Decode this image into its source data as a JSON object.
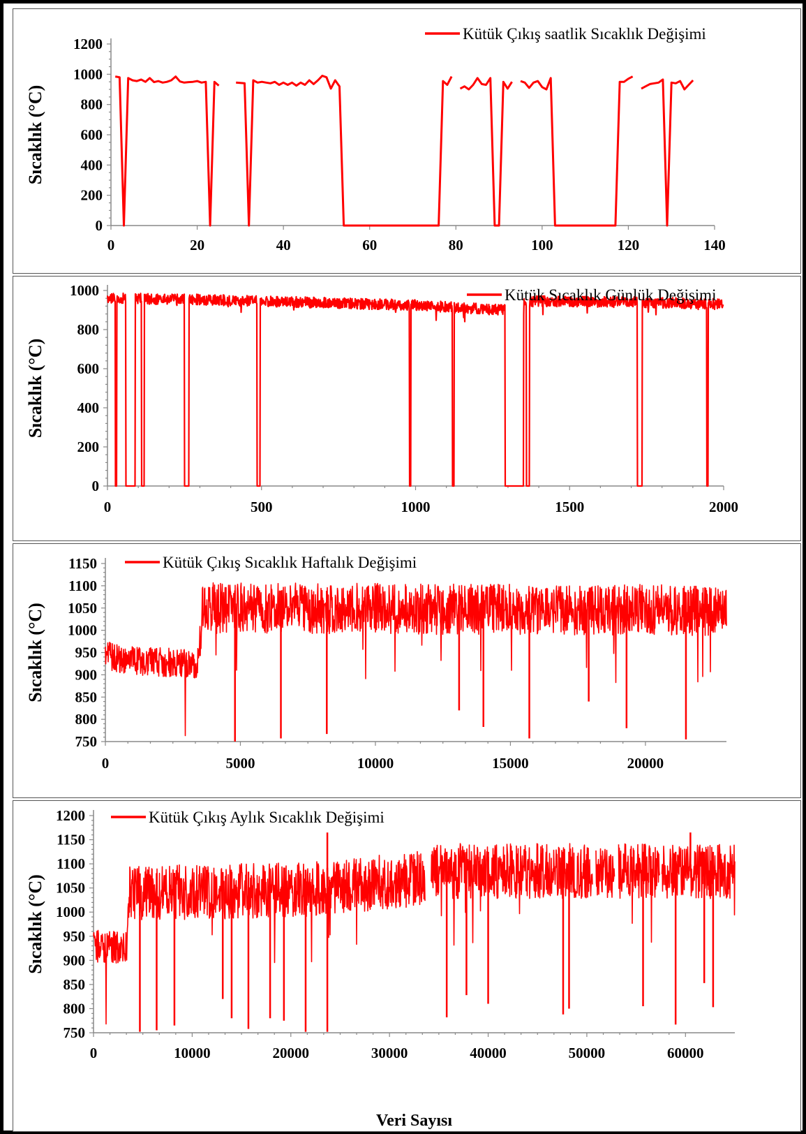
{
  "colors": {
    "series": "#ff0000",
    "axis": "#888888",
    "text": "#000000"
  },
  "chart_data": [
    {
      "type": "line",
      "ylabel": "Sıcaklık (°C)",
      "xlabel": "",
      "xlim": [
        0,
        140
      ],
      "ylim": [
        0,
        1200
      ],
      "xticks": [
        0,
        20,
        40,
        60,
        80,
        100,
        120,
        140
      ],
      "yticks": [
        0,
        200,
        400,
        600,
        800,
        1000,
        1200
      ],
      "legend": "top-right",
      "grid": false,
      "series": [
        {
          "name": "Kütük Çıkış saatlik Sıcaklık Değişimi",
          "segments": [
            [
              [
                1,
                985
              ],
              [
                2,
                980
              ],
              [
                3,
                0
              ],
              [
                4,
                975
              ],
              [
                5,
                960
              ],
              [
                6,
                955
              ],
              [
                7,
                965
              ],
              [
                8,
                950
              ],
              [
                9,
                975
              ],
              [
                10,
                948
              ],
              [
                11,
                955
              ],
              [
                12,
                945
              ],
              [
                13,
                950
              ],
              [
                14,
                960
              ],
              [
                15,
                985
              ],
              [
                16,
                952
              ],
              [
                17,
                945
              ],
              [
                18,
                948
              ],
              [
                19,
                950
              ],
              [
                20,
                955
              ],
              [
                21,
                945
              ],
              [
                22,
                950
              ],
              [
                23,
                0
              ],
              [
                24,
                950
              ],
              [
                25,
                925
              ]
            ],
            [
              [
                29,
                945
              ],
              [
                31,
                940
              ],
              [
                32,
                0
              ],
              [
                33,
                960
              ],
              [
                34,
                945
              ],
              [
                35,
                950
              ],
              [
                36,
                945
              ],
              [
                37,
                940
              ],
              [
                38,
                950
              ],
              [
                39,
                930
              ],
              [
                40,
                945
              ],
              [
                41,
                930
              ],
              [
                42,
                945
              ],
              [
                43,
                925
              ],
              [
                44,
                945
              ],
              [
                45,
                930
              ],
              [
                46,
                960
              ],
              [
                47,
                935
              ],
              [
                48,
                960
              ],
              [
                49,
                990
              ],
              [
                50,
                980
              ],
              [
                51,
                905
              ],
              [
                52,
                960
              ],
              [
                53,
                920
              ],
              [
                54,
                0
              ],
              [
                60,
                0
              ],
              [
                70,
                0
              ],
              [
                76,
                0
              ],
              [
                77,
                955
              ],
              [
                78,
                930
              ],
              [
                79,
                985
              ]
            ],
            [
              [
                81,
                905
              ],
              [
                82,
                920
              ],
              [
                83,
                900
              ],
              [
                84,
                930
              ],
              [
                85,
                975
              ],
              [
                86,
                935
              ],
              [
                87,
                930
              ],
              [
                88,
                975
              ],
              [
                89,
                0
              ],
              [
                90,
                0
              ],
              [
                91,
                950
              ],
              [
                92,
                905
              ],
              [
                93,
                950
              ]
            ],
            [
              [
                95,
                955
              ],
              [
                96,
                945
              ],
              [
                97,
                910
              ],
              [
                98,
                945
              ],
              [
                99,
                955
              ],
              [
                100,
                915
              ],
              [
                101,
                900
              ],
              [
                102,
                975
              ],
              [
                103,
                0
              ],
              [
                110,
                0
              ],
              [
                117,
                0
              ],
              [
                118,
                950
              ],
              [
                119,
                950
              ],
              [
                120,
                970
              ],
              [
                121,
                985
              ]
            ],
            [
              [
                123,
                905
              ],
              [
                124,
                920
              ],
              [
                125,
                935
              ],
              [
                126,
                940
              ],
              [
                127,
                945
              ],
              [
                128,
                965
              ],
              [
                129,
                0
              ],
              [
                130,
                945
              ],
              [
                131,
                940
              ],
              [
                132,
                955
              ],
              [
                133,
                900
              ],
              [
                134,
                930
              ],
              [
                135,
                960
              ]
            ]
          ]
        }
      ]
    },
    {
      "type": "line",
      "ylabel": "Sıcaklık (°C)",
      "xlabel": "",
      "xlim": [
        0,
        2000
      ],
      "ylim": [
        0,
        1000
      ],
      "xticks": [
        0,
        500,
        1000,
        1500,
        2000
      ],
      "yticks": [
        0,
        200,
        400,
        600,
        800,
        1000
      ],
      "legend": "top-right",
      "grid": false,
      "series": [
        {
          "name": "Kütük Sıcaklık Günlük Değişimi",
          "base_level": [
            [
              0,
              960
            ],
            [
              250,
              955
            ],
            [
              500,
              945
            ],
            [
              1000,
              925
            ],
            [
              1280,
              900
            ],
            [
              1370,
              945
            ],
            [
              1700,
              940
            ],
            [
              2000,
              930
            ]
          ],
          "drops_to_zero": [
            [
              25,
              30
            ],
            [
              60,
              90
            ],
            [
              110,
              120
            ],
            [
              250,
              265
            ],
            [
              485,
              495
            ],
            [
              980,
              985
            ],
            [
              1120,
              1125
            ],
            [
              1290,
              1350
            ],
            [
              1360,
              1370
            ],
            [
              1720,
              1735
            ],
            [
              1945,
              1950
            ]
          ]
        }
      ]
    },
    {
      "type": "line",
      "ylabel": "Sıcaklık (°C)",
      "xlabel": "",
      "xlim": [
        0,
        23000
      ],
      "ylim": [
        750,
        1150
      ],
      "xticks": [
        0,
        5000,
        10000,
        15000,
        20000
      ],
      "yticks": [
        750,
        800,
        850,
        900,
        950,
        1000,
        1050,
        1100,
        1150
      ],
      "legend": "top-left",
      "grid": false,
      "series": [
        {
          "name": "Kütük Çıkış  Sıcaklık Haftalık Değişimi",
          "base_level": [
            [
              0,
              945
            ],
            [
              1000,
              930
            ],
            [
              3400,
              925
            ],
            [
              3600,
              1050
            ],
            [
              23000,
              1045
            ]
          ],
          "spikes_down": [
            [
              4800,
              750
            ],
            [
              6500,
              757
            ],
            [
              8200,
              767
            ],
            [
              13100,
              820
            ],
            [
              14000,
              783
            ],
            [
              15700,
              757
            ],
            [
              17900,
              840
            ],
            [
              19300,
              780
            ],
            [
              21500,
              755
            ]
          ]
        }
      ]
    },
    {
      "type": "line",
      "ylabel": "Sıcaklık (°C)",
      "xlabel": "Veri Sayısı",
      "xlim": [
        0,
        65000
      ],
      "ylim": [
        750,
        1200
      ],
      "xticks": [
        0,
        10000,
        20000,
        30000,
        40000,
        50000,
        60000
      ],
      "yticks": [
        750,
        800,
        850,
        900,
        950,
        1000,
        1050,
        1100,
        1150,
        1200
      ],
      "legend": "top-left",
      "grid": false,
      "series": [
        {
          "name": "Kütük Çıkış Aylık Sıcaklık Değişimi",
          "base_level": [
            [
              0,
              930
            ],
            [
              3400,
              925
            ],
            [
              3600,
              1040
            ],
            [
              20000,
              1045
            ],
            [
              33500,
              1070
            ],
            [
              34000,
              1085
            ],
            [
              65000,
              1085
            ]
          ],
          "spikes_down": [
            [
              4700,
              752
            ],
            [
              6400,
              755
            ],
            [
              8200,
              765
            ],
            [
              13100,
              820
            ],
            [
              14000,
              780
            ],
            [
              15700,
              758
            ],
            [
              17900,
              780
            ],
            [
              19300,
              775
            ],
            [
              21500,
              752
            ],
            [
              23700,
              752
            ],
            [
              35800,
              782
            ],
            [
              37800,
              828
            ],
            [
              40000,
              810
            ],
            [
              47600,
              788
            ],
            [
              48200,
              800
            ],
            [
              55700,
              805
            ],
            [
              59000,
              767
            ],
            [
              61900,
              853
            ],
            [
              62800,
              803
            ]
          ],
          "spikes_up": [
            [
              23700,
              1165
            ],
            [
              60500,
              1165
            ]
          ],
          "gaps": [
            [
              33600,
              34200
            ],
            [
              50600,
              50900
            ],
            [
              52800,
              53200
            ],
            [
              57400,
              57600
            ]
          ]
        }
      ]
    }
  ]
}
